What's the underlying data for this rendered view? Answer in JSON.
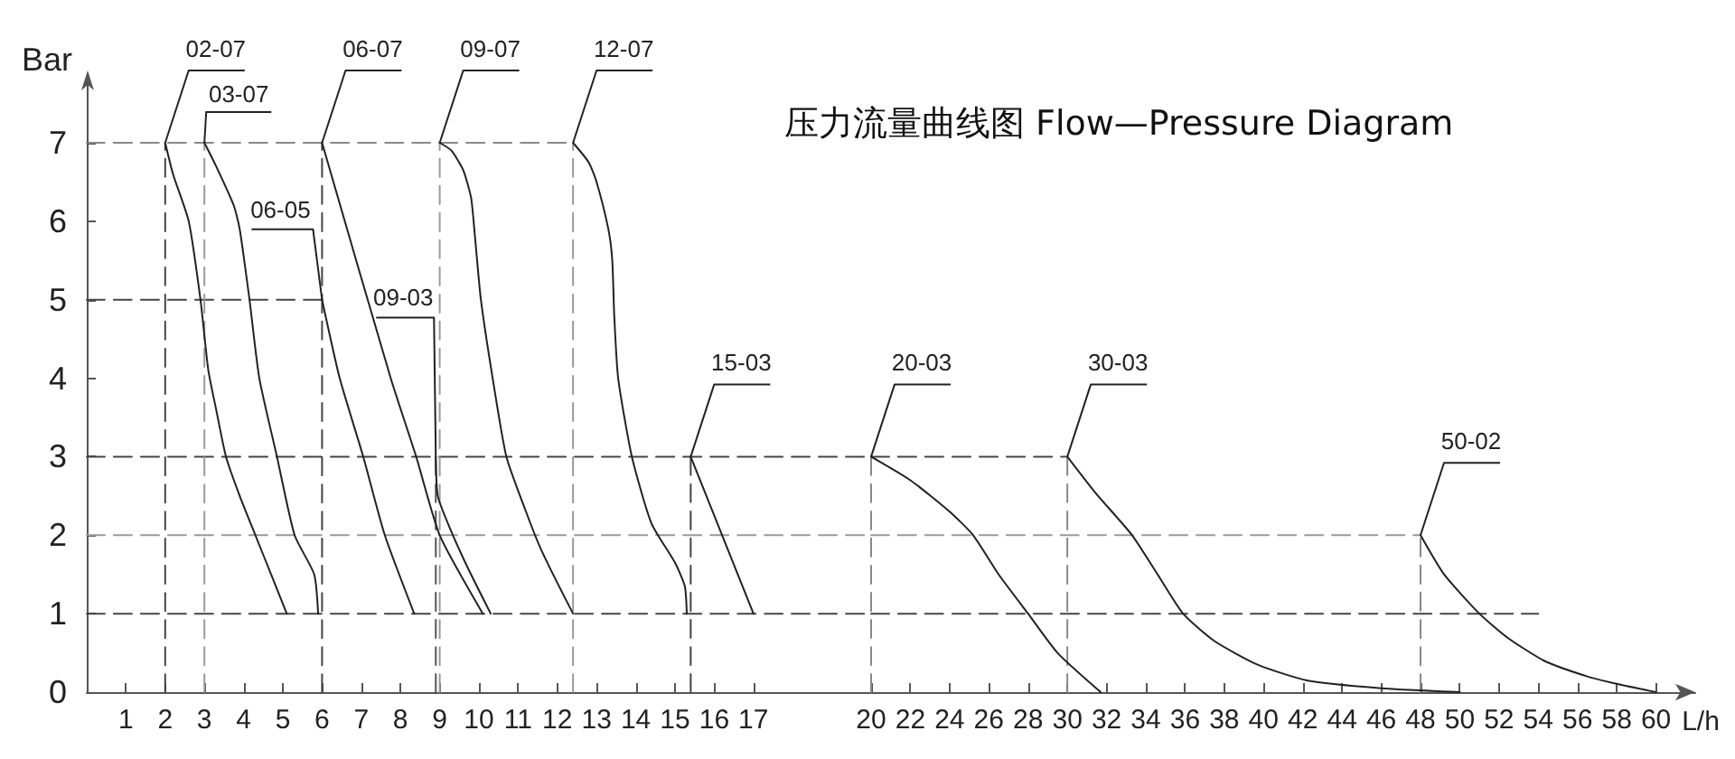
{
  "chart_data": [
    {
      "type": "line",
      "ylabel": "Bar",
      "xlim": [
        0,
        20
      ],
      "xticks": [
        1,
        2,
        3,
        4,
        5,
        6,
        7,
        8,
        9,
        10,
        11,
        12,
        13,
        14,
        15,
        16,
        17
      ],
      "ylim": [
        0,
        7
      ],
      "yticks": [
        0,
        1,
        2,
        3,
        4,
        5,
        6,
        7
      ],
      "series": [
        {
          "name": "02-07",
          "color": "#222222",
          "x": [
            2,
            2.2,
            2.6,
            2.9,
            3.1,
            3.3,
            3.55,
            3.9,
            4.3,
            4.7,
            5.1
          ],
          "values": [
            7,
            6.6,
            6,
            5,
            4.1,
            3.6,
            3,
            2.5,
            2,
            1.5,
            1
          ]
        },
        {
          "name": "03-07",
          "color": "#222222",
          "x": [
            3,
            3.3,
            3.75,
            3.9,
            4.15,
            4.4,
            4.85,
            5.3,
            5.8,
            5.9
          ],
          "values": [
            7,
            6.7,
            6.2,
            5.9,
            5,
            4,
            3,
            2,
            1.5,
            1
          ]
        },
        {
          "name": "06-07",
          "color": "#222222",
          "x": [
            6,
            7.75,
            8.4,
            9,
            10.1
          ],
          "values": [
            7,
            4,
            3,
            2,
            1
          ]
        },
        {
          "name": "06-05",
          "color": "#222222",
          "x": [
            6,
            6.45,
            7.05,
            7.6,
            8.35
          ],
          "values": [
            5,
            4,
            3,
            2,
            1
          ]
        },
        {
          "name": "09-03",
          "color": "#222222",
          "x": [
            8.9,
            8.95,
            9.25,
            9.7,
            10.3
          ],
          "values": [
            3,
            2.5,
            2.1,
            1.6,
            1
          ]
        },
        {
          "name": "09-07",
          "color": "#222222",
          "x": [
            9,
            9.3,
            9.6,
            9.8,
            9.9,
            10.05,
            10.35,
            10.7,
            11.2,
            11.6,
            12.4
          ],
          "values": [
            7,
            6.9,
            6.65,
            6.3,
            5.8,
            5,
            4,
            3,
            2.3,
            1.8,
            1
          ]
        },
        {
          "name": "12-07",
          "color": "#222222",
          "x": [
            12.4,
            12.8,
            13,
            13.3,
            13.4,
            13.45,
            13.55,
            13.9,
            14.4,
            15,
            15.25,
            15.3
          ],
          "values": [
            7,
            6.75,
            6.5,
            5.9,
            5.5,
            4.8,
            4,
            3,
            2.15,
            1.65,
            1.35,
            1
          ]
        },
        {
          "name": "15-03",
          "color": "#222222",
          "x": [
            15.4,
            17
          ],
          "values": [
            3,
            1
          ]
        },
        {
          "color": "#888888",
          "line_style": "dashed",
          "x": [
            0,
            12.4
          ],
          "values": [
            7,
            7
          ]
        },
        {
          "color": "#444444",
          "line_style": "dashed",
          "x": [
            0,
            6
          ],
          "values": [
            5,
            5
          ]
        },
        {
          "color": "#444444",
          "line_style": "dashed",
          "x": [
            0,
            20
          ],
          "values": [
            3,
            3
          ]
        },
        {
          "color": "#999999",
          "line_style": "dashed",
          "x": [
            0,
            20
          ],
          "values": [
            2,
            2
          ]
        },
        {
          "color": "#444444",
          "line_style": "dashed",
          "x": [
            0,
            20
          ],
          "values": [
            1,
            1
          ]
        },
        {
          "color": "#444444",
          "line_style": "dashed",
          "x": [
            2,
            2
          ],
          "values": [
            0,
            7
          ]
        },
        {
          "color": "#999999",
          "line_style": "dashed",
          "x": [
            3,
            3
          ],
          "values": [
            0,
            7
          ]
        },
        {
          "color": "#444444",
          "line_style": "dashed",
          "x": [
            6,
            6
          ],
          "values": [
            0,
            7
          ]
        },
        {
          "color": "#555555",
          "line_style": "dashed",
          "x": [
            8.9,
            8.9
          ],
          "values": [
            0,
            3
          ]
        },
        {
          "color": "#999999",
          "line_style": "dashed",
          "x": [
            9,
            9
          ],
          "values": [
            0,
            7
          ]
        },
        {
          "color": "#999999",
          "line_style": "dashed",
          "x": [
            12.4,
            12.4
          ],
          "values": [
            0,
            7
          ]
        },
        {
          "color": "#444444",
          "line_style": "dashed",
          "x": [
            15.4,
            15.4
          ],
          "values": [
            0,
            3
          ]
        }
      ]
    },
    {
      "type": "line",
      "title": "压力流量曲线图 Flow—Pressure Diagram",
      "xlabel": "L/h",
      "tick_labels": "x",
      "xlim": [
        20,
        62
      ],
      "xticks": [
        20,
        22,
        24,
        26,
        28,
        30,
        32,
        34,
        36,
        38,
        40,
        42,
        44,
        46,
        48,
        50,
        52,
        54,
        56,
        58,
        60
      ],
      "ylim": [
        0,
        7
      ],
      "series": [
        {
          "name": "20-03",
          "color": "#222222",
          "x": [
            20,
            22,
            24,
            25.2,
            26.5,
            28,
            29.5,
            31.7
          ],
          "values": [
            3,
            2.7,
            2.3,
            2,
            1.5,
            1,
            0.5,
            0
          ]
        },
        {
          "name": "30-03",
          "color": "#222222",
          "x": [
            30,
            31.4,
            33.3,
            34.6,
            35.9,
            37.5,
            39.7,
            42.2,
            46,
            50
          ],
          "values": [
            3,
            2.55,
            2,
            1.5,
            1,
            0.65,
            0.35,
            0.15,
            0.05,
            0
          ]
        },
        {
          "name": "50-02",
          "color": "#222222",
          "x": [
            48,
            49.2,
            51,
            52.4,
            54.3,
            56.5,
            58.1,
            60
          ],
          "values": [
            2,
            1.5,
            1,
            0.7,
            0.4,
            0.2,
            0.1,
            0
          ]
        },
        {
          "color": "#444444",
          "line_style": "dashed",
          "x": [
            20,
            30
          ],
          "values": [
            3,
            3
          ]
        },
        {
          "color": "#999999",
          "line_style": "dashed",
          "x": [
            20,
            48
          ],
          "values": [
            2,
            2
          ]
        },
        {
          "color": "#444444",
          "line_style": "dashed",
          "x": [
            20,
            54
          ],
          "values": [
            1,
            1
          ]
        },
        {
          "color": "#888888",
          "line_style": "dashed",
          "x": [
            20,
            20
          ],
          "values": [
            0,
            3
          ]
        },
        {
          "color": "#888888",
          "line_style": "dashed",
          "x": [
            30,
            30
          ],
          "values": [
            0,
            3
          ]
        },
        {
          "color": "#888888",
          "line_style": "dashed",
          "x": [
            48,
            48
          ],
          "values": [
            0,
            2
          ]
        }
      ]
    }
  ]
}
